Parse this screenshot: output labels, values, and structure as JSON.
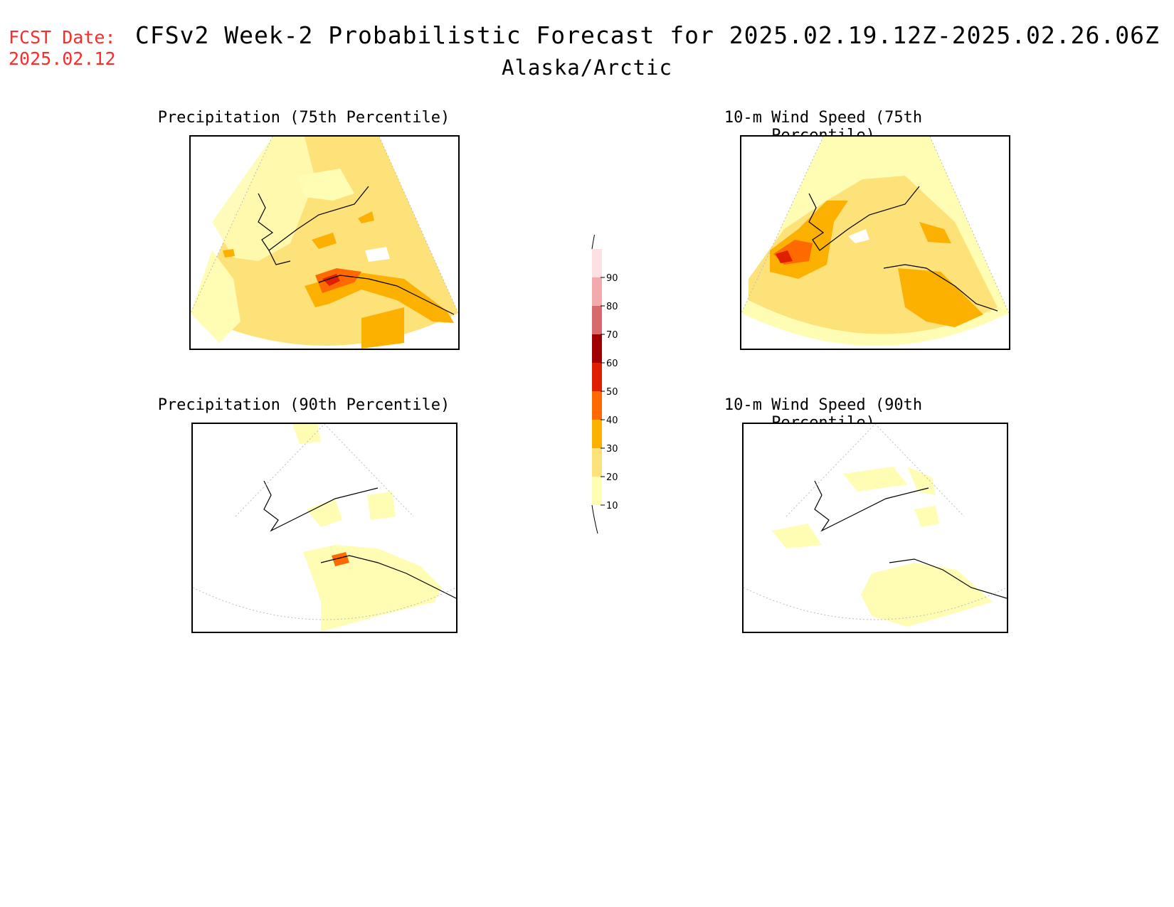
{
  "header": {
    "fcst_label": "FCST Date:",
    "fcst_date": "2025.02.12",
    "title": "CFSv2 Week-2 Probabilistic Forecast for 2025.02.19.12Z-2025.02.26.06Z",
    "subtitle": "Alaska/Arctic"
  },
  "panels": [
    {
      "title": "Precipitation (75th Percentile)"
    },
    {
      "title": "10-m Wind Speed (75th Percentile)"
    },
    {
      "title": "Precipitation (90th Percentile)"
    },
    {
      "title": "10-m Wind Speed (90th Percentile)"
    }
  ],
  "colorbar": {
    "levels": [
      "10",
      "20",
      "30",
      "40",
      "50",
      "60",
      "70",
      "80",
      "90"
    ],
    "colors": [
      "#fffcb4",
      "#fde27a",
      "#fcb000",
      "#fe6a00",
      "#e01f00",
      "#a10000",
      "#d86a6e",
      "#f2aaad",
      "#fde0e2"
    ]
  }
}
